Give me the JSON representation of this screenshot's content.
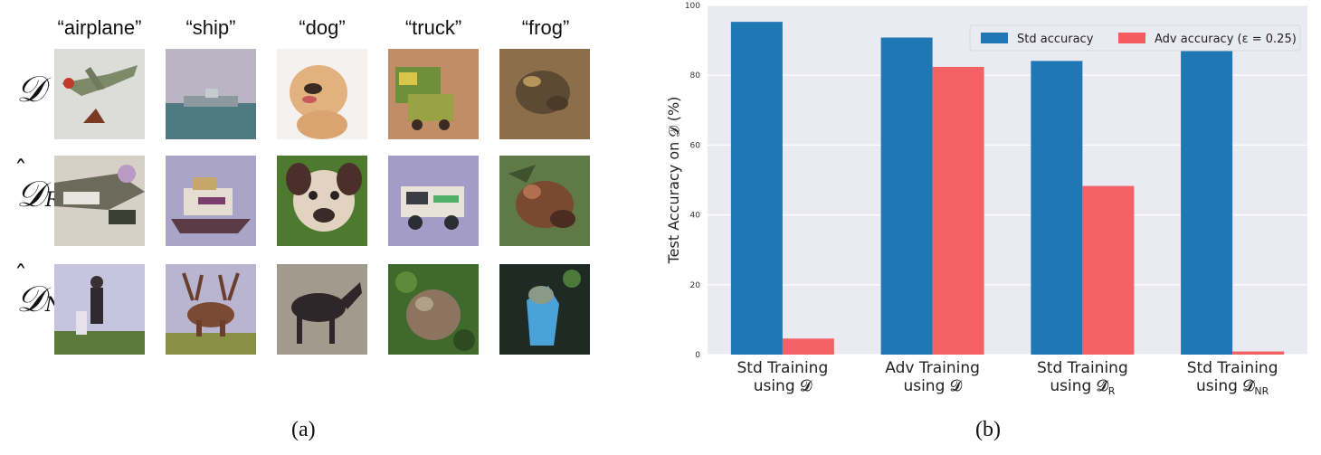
{
  "panel_a": {
    "classes": [
      "“airplane”",
      "“ship”",
      "“dog”",
      "“truck”",
      "“frog”"
    ],
    "rows": [
      {
        "label": "𝒟",
        "sub": ""
      },
      {
        "label": "𝒟",
        "sub": "R"
      },
      {
        "label": "𝒟",
        "sub": "NR"
      }
    ],
    "hat": "ˆ",
    "caption": "(a)"
  },
  "panel_b": {
    "caption": "(b)"
  },
  "chart_data": {
    "type": "bar",
    "categories": [
      [
        "Std Training",
        "using 𝓓"
      ],
      [
        "Adv Training",
        "using 𝓓"
      ],
      [
        "Std Training",
        "using 𝓓̂",
        "R"
      ],
      [
        "Std Training",
        "using 𝓓̂",
        "NR"
      ]
    ],
    "series": [
      {
        "name": "Std accuracy",
        "color": "#1f77b4",
        "values": [
          95.3,
          90.8,
          84.1,
          87.7
        ]
      },
      {
        "name": "Adv accuracy (ε = 0.25)",
        "color": "#f45b5f",
        "values": [
          4.6,
          82.4,
          48.3,
          0.9
        ]
      }
    ],
    "ylabel": "Test Accuracy on 𝓓 (%)",
    "ylim": [
      0,
      100
    ],
    "yticks": [
      0,
      20,
      40,
      60,
      80,
      100
    ],
    "grid": true,
    "legend": "top-right",
    "background": "#eaeaf2"
  }
}
